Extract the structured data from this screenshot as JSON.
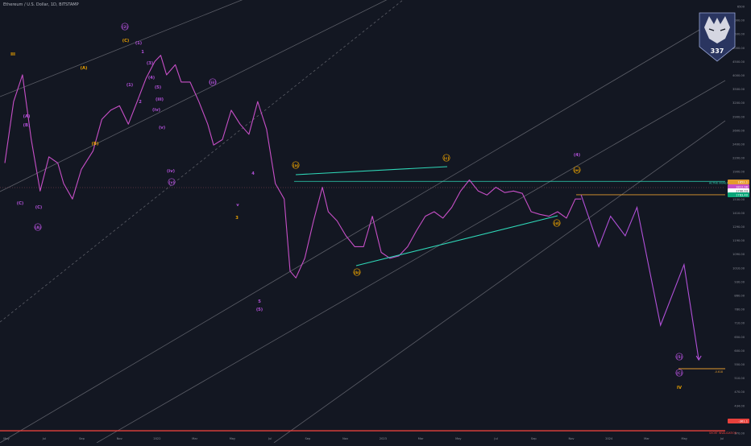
{
  "header": {
    "symbol": "Ethereum / U.S. Dollar, 1D, BITSTAMP"
  },
  "colors": {
    "background": "#131722",
    "price_line": "#c74fc7",
    "price_line_alt": "#e0a23a",
    "label_purple": "#b150d8",
    "label_orange": "#e8a000",
    "triangle": "#2fd8b8",
    "orange_level": "#e39b2d",
    "red_level": "#e8413c",
    "projection": "#b150d8",
    "channel": "#6d6f78",
    "axis_text": "#8c8f99"
  },
  "price_axis": {
    "labels": [
      "6500",
      "6000.00",
      "5500.00",
      "5000.00",
      "4500.00",
      "4000.00",
      "3500.00",
      "3200.00",
      "2900.00",
      "2600.00",
      "2400.00",
      "2200.00",
      "1900.00",
      "1650.00",
      "1530.00",
      "1410.00",
      "1290.00",
      "1190.00",
      "1090.00",
      "1010.00",
      "930.00",
      "860.00",
      "780.00",
      "710.00",
      "650.00",
      "600.00",
      "550.00",
      "510.00",
      "470.00",
      "434.00",
      "401.00",
      "370.00"
    ]
  },
  "time_axis": {
    "labels": [
      "May",
      "Jul",
      "Sep",
      "Nov",
      "2022",
      "Mar",
      "May",
      "Jul",
      "Sep",
      "Nov",
      "2023",
      "Mar",
      "May",
      "Jul",
      "Sep",
      "Nov",
      "2024",
      "Mar",
      "May",
      "Jul"
    ]
  },
  "price_tags": [
    {
      "text": "1852.1",
      "color": "#e39b2d"
    },
    {
      "text": "1812.98",
      "color": "#c74fc7"
    },
    {
      "text": "1790.03",
      "color": "#ffffff"
    },
    {
      "text": "1783.40",
      "color": "#0aa77a"
    },
    {
      "text": "-361.1",
      "color": "#e8413c"
    }
  ],
  "annotations": {
    "activate_invalidation": "ACTIVE INVALIDATION",
    "target_ratio": "-0.618",
    "bottom_invalidation": "SHORT INVALIDATION"
  },
  "logo": {
    "number": "337"
  },
  "wave_labels": [
    "III",
    "(A)",
    "(B)",
    "(C)",
    "(1)",
    "(2)",
    "(3)",
    "(4)",
    "(5)",
    "(iii)",
    "(iv)",
    "(v)",
    "(A)",
    "(B)",
    "(C)",
    "(a)",
    "(b)",
    "(c)",
    "(d)",
    "(e)",
    "(4)",
    "(5)",
    "(C)",
    "IV",
    "1",
    "2",
    "3",
    "4",
    "5",
    "(i)",
    "(ii)",
    "A",
    "B",
    "C",
    "D",
    "E",
    "v",
    "(1)",
    "(2)",
    "(3)",
    "(4)"
  ],
  "chart_data": {
    "type": "line",
    "title": "Ethereum / U.S. Dollar, 1D, BITSTAMP",
    "xlabel": "",
    "ylabel": "",
    "scale": "log",
    "ylim": [
      360,
      6700
    ],
    "x_start": "2021-05",
    "x_end": "2024-07",
    "grid": false,
    "series": [
      {
        "values": [
          [
            0.0,
            2300
          ],
          [
            0.3,
            3500
          ],
          [
            0.6,
            4200
          ],
          [
            0.9,
            2700
          ],
          [
            1.2,
            1900
          ],
          [
            1.5,
            2400
          ],
          [
            1.8,
            2300
          ],
          [
            2.0,
            2000
          ],
          [
            2.3,
            1800
          ],
          [
            2.6,
            2200
          ],
          [
            3.0,
            2500
          ],
          [
            3.3,
            3100
          ],
          [
            3.6,
            3300
          ],
          [
            3.9,
            3400
          ],
          [
            4.2,
            3000
          ],
          [
            4.5,
            3500
          ],
          [
            4.8,
            4100
          ],
          [
            5.1,
            4600
          ],
          [
            5.3,
            4800
          ],
          [
            5.5,
            4200
          ],
          [
            5.8,
            4500
          ],
          [
            6.0,
            4000
          ],
          [
            6.3,
            4000
          ],
          [
            6.6,
            3500
          ],
          [
            6.9,
            3000
          ],
          [
            7.1,
            2600
          ],
          [
            7.4,
            2700
          ],
          [
            7.7,
            3300
          ],
          [
            8.0,
            3000
          ],
          [
            8.3,
            2800
          ],
          [
            8.6,
            3500
          ],
          [
            8.9,
            2900
          ],
          [
            9.2,
            2000
          ],
          [
            9.5,
            1800
          ],
          [
            9.7,
            1100
          ],
          [
            9.9,
            1050
          ],
          [
            10.2,
            1200
          ],
          [
            10.5,
            1550
          ],
          [
            10.8,
            1950
          ],
          [
            11.0,
            1650
          ],
          [
            11.3,
            1550
          ],
          [
            11.6,
            1400
          ],
          [
            11.9,
            1300
          ],
          [
            12.2,
            1300
          ],
          [
            12.5,
            1600
          ],
          [
            12.8,
            1250
          ],
          [
            13.1,
            1200
          ],
          [
            13.4,
            1220
          ],
          [
            13.7,
            1300
          ],
          [
            14.0,
            1450
          ],
          [
            14.3,
            1600
          ],
          [
            14.6,
            1650
          ],
          [
            14.9,
            1580
          ],
          [
            15.2,
            1700
          ],
          [
            15.5,
            1900
          ],
          [
            15.8,
            2050
          ],
          [
            16.1,
            1900
          ],
          [
            16.4,
            1850
          ],
          [
            16.7,
            1950
          ],
          [
            17.0,
            1880
          ],
          [
            17.3,
            1900
          ],
          [
            17.6,
            1870
          ],
          [
            17.9,
            1650
          ],
          [
            18.2,
            1620
          ],
          [
            18.5,
            1600
          ],
          [
            18.8,
            1650
          ],
          [
            19.1,
            1580
          ],
          [
            19.4,
            1800
          ],
          [
            19.6,
            1800
          ]
        ]
      }
    ],
    "projection": [
      [
        19.6,
        1850
      ],
      [
        20.2,
        1300
      ],
      [
        20.6,
        1600
      ],
      [
        21.1,
        1400
      ],
      [
        21.5,
        1700
      ],
      [
        22.3,
        760
      ],
      [
        23.1,
        1150
      ],
      [
        23.6,
        600
      ]
    ],
    "levels": [
      {
        "name": "ACTIVE INVALIDATION",
        "value": 2030,
        "color": "#2fd8b8"
      },
      {
        "name": "orange level",
        "value": 1852,
        "color": "#e39b2d"
      },
      {
        "name": "-0.618",
        "value": 565,
        "color": "#e39b2d"
      },
      {
        "name": "SHORT INVALIDATION",
        "value": 370,
        "color": "#e8413c"
      }
    ]
  }
}
